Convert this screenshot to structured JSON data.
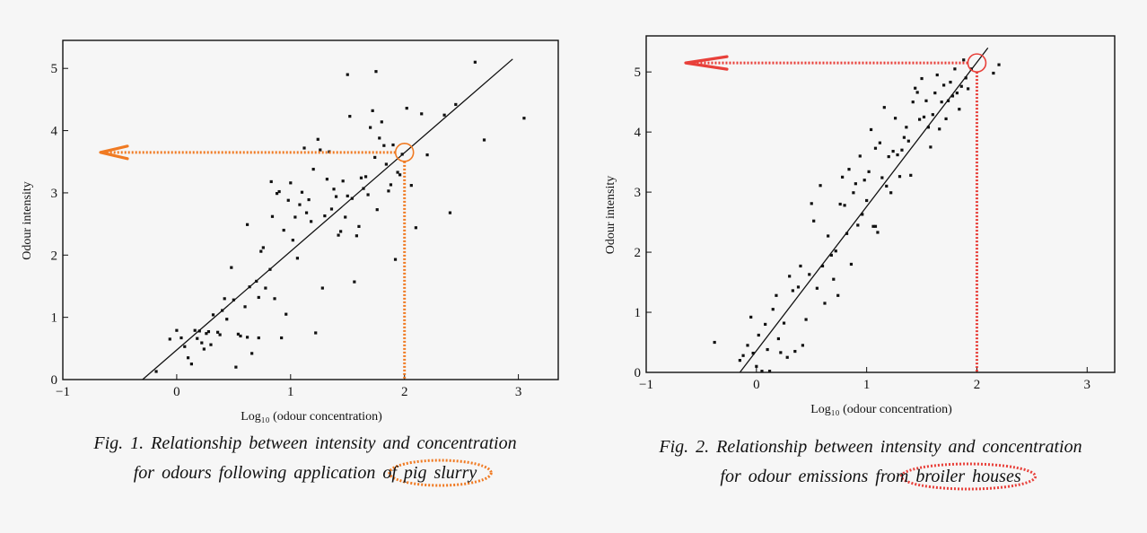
{
  "colors": {
    "fig1_highlight": "#f07a22",
    "fig2_highlight": "#e8403a",
    "ink": "#111111",
    "background": "#f6f6f6"
  },
  "captions": {
    "fig1": {
      "line1": "Fig. 1. Relationship between intensity and concentration",
      "line2_prefix": "for odours following application of",
      "line2_highlight": "pig slurry"
    },
    "fig2": {
      "line1": "Fig. 2. Relationship between intensity and concentration",
      "line2_prefix": "for odour emissions from",
      "line2_highlight": "broiler houses"
    }
  },
  "chart_data": [
    {
      "type": "scatter",
      "xlabel": "Log₁₀ (odour concentration)",
      "ylabel": "Odour intensity",
      "xlim": [
        -1,
        3.35
      ],
      "ylim": [
        0,
        5.45
      ],
      "x_ticks": [
        "−1",
        "0",
        "1",
        "2",
        "3"
      ],
      "y_ticks": [
        "0",
        "1",
        "2",
        "3",
        "4",
        "5"
      ],
      "grid": false,
      "regression_line": {
        "x1": -0.3,
        "y1": 0.0,
        "x2": 2.95,
        "y2": 5.15
      },
      "highlight": {
        "point": [
          2.0,
          3.65
        ],
        "marker": "circle",
        "arrow_to_axis": "y",
        "drop_to_axis": "x"
      },
      "points": [
        [
          -0.18,
          0.13
        ],
        [
          -0.06,
          0.65
        ],
        [
          0.0,
          0.79
        ],
        [
          0.04,
          0.67
        ],
        [
          0.07,
          0.53
        ],
        [
          0.1,
          0.35
        ],
        [
          0.13,
          0.25
        ],
        [
          0.16,
          0.79
        ],
        [
          0.18,
          0.66
        ],
        [
          0.2,
          0.78
        ],
        [
          0.22,
          0.59
        ],
        [
          0.24,
          0.49
        ],
        [
          0.26,
          0.74
        ],
        [
          0.28,
          0.77
        ],
        [
          0.3,
          0.56
        ],
        [
          0.32,
          1.04
        ],
        [
          0.36,
          0.76
        ],
        [
          0.38,
          0.72
        ],
        [
          0.4,
          1.11
        ],
        [
          0.42,
          1.3
        ],
        [
          0.44,
          0.97
        ],
        [
          0.48,
          1.8
        ],
        [
          0.5,
          1.28
        ],
        [
          0.52,
          0.2
        ],
        [
          0.54,
          0.73
        ],
        [
          0.56,
          0.7
        ],
        [
          0.6,
          1.17
        ],
        [
          0.62,
          2.49
        ],
        [
          0.62,
          0.68
        ],
        [
          0.64,
          1.49
        ],
        [
          0.66,
          0.42
        ],
        [
          0.7,
          1.58
        ],
        [
          0.72,
          1.32
        ],
        [
          0.72,
          0.67
        ],
        [
          0.74,
          2.06
        ],
        [
          0.76,
          2.12
        ],
        [
          0.78,
          1.47
        ],
        [
          0.82,
          1.77
        ],
        [
          0.84,
          2.62
        ],
        [
          0.86,
          1.3
        ],
        [
          0.88,
          2.99
        ],
        [
          0.9,
          3.02
        ],
        [
          0.92,
          0.67
        ],
        [
          0.94,
          2.4
        ],
        [
          0.96,
          1.05
        ],
        [
          0.98,
          2.88
        ],
        [
          1.0,
          3.16
        ],
        [
          1.02,
          2.24
        ],
        [
          1.04,
          2.61
        ],
        [
          1.06,
          1.95
        ],
        [
          1.08,
          2.81
        ],
        [
          1.1,
          3.01
        ],
        [
          1.12,
          3.72
        ],
        [
          1.14,
          2.68
        ],
        [
          1.16,
          2.89
        ],
        [
          1.18,
          2.54
        ],
        [
          1.2,
          3.38
        ],
        [
          1.22,
          0.75
        ],
        [
          1.24,
          3.86
        ],
        [
          1.26,
          3.69
        ],
        [
          1.28,
          1.47
        ],
        [
          1.3,
          2.63
        ],
        [
          1.32,
          3.22
        ],
        [
          1.34,
          3.66
        ],
        [
          1.36,
          2.74
        ],
        [
          1.38,
          3.06
        ],
        [
          1.4,
          2.94
        ],
        [
          1.42,
          2.32
        ],
        [
          1.44,
          2.38
        ],
        [
          1.46,
          3.19
        ],
        [
          1.48,
          2.61
        ],
        [
          1.5,
          2.95
        ],
        [
          1.52,
          4.23
        ],
        [
          1.54,
          2.91
        ],
        [
          1.56,
          1.57
        ],
        [
          1.58,
          2.31
        ],
        [
          1.6,
          2.46
        ],
        [
          1.62,
          3.24
        ],
        [
          1.64,
          3.07
        ],
        [
          1.66,
          3.26
        ],
        [
          1.68,
          2.97
        ],
        [
          1.7,
          4.05
        ],
        [
          1.72,
          4.32
        ],
        [
          1.74,
          3.57
        ],
        [
          1.76,
          2.73
        ],
        [
          1.78,
          3.88
        ],
        [
          1.8,
          4.14
        ],
        [
          1.82,
          3.76
        ],
        [
          1.84,
          3.46
        ],
        [
          1.86,
          3.03
        ],
        [
          1.88,
          3.13
        ],
        [
          1.9,
          3.77
        ],
        [
          1.92,
          1.93
        ],
        [
          1.94,
          3.33
        ],
        [
          1.96,
          3.29
        ],
        [
          1.98,
          3.62
        ],
        [
          2.02,
          4.36
        ],
        [
          2.06,
          3.12
        ],
        [
          2.1,
          2.44
        ],
        [
          2.15,
          4.27
        ],
        [
          2.2,
          3.61
        ],
        [
          2.35,
          4.25
        ],
        [
          2.4,
          2.68
        ],
        [
          2.45,
          4.42
        ],
        [
          2.62,
          5.1
        ],
        [
          2.7,
          3.85
        ],
        [
          3.05,
          4.2
        ],
        [
          1.5,
          4.9
        ],
        [
          1.75,
          4.95
        ],
        [
          0.83,
          3.18
        ]
      ]
    },
    {
      "type": "scatter",
      "xlabel": "Log₁₀ (odour concentration)",
      "ylabel": "Odour intensity",
      "xlim": [
        -1,
        3.25
      ],
      "ylim": [
        0,
        5.6
      ],
      "x_ticks": [
        "−1",
        "0",
        "1",
        "2",
        "3"
      ],
      "y_ticks": [
        "0",
        "1",
        "2",
        "3",
        "4",
        "5"
      ],
      "grid": false,
      "regression_line": {
        "x1": -0.15,
        "y1": 0.0,
        "x2": 2.1,
        "y2": 5.4
      },
      "highlight": {
        "point": [
          2.0,
          5.15
        ],
        "marker": "circle",
        "arrow_to_axis": "y",
        "drop_to_axis": "x"
      },
      "points": [
        [
          -0.38,
          0.5
        ],
        [
          -0.15,
          0.2
        ],
        [
          -0.12,
          0.28
        ],
        [
          -0.08,
          0.45
        ],
        [
          -0.05,
          0.92
        ],
        [
          -0.03,
          0.32
        ],
        [
          0.0,
          0.1
        ],
        [
          0.02,
          0.62
        ],
        [
          0.05,
          0.02
        ],
        [
          0.08,
          0.8
        ],
        [
          0.1,
          0.38
        ],
        [
          0.12,
          0.02
        ],
        [
          0.15,
          1.05
        ],
        [
          0.18,
          1.28
        ],
        [
          0.2,
          0.56
        ],
        [
          0.22,
          0.33
        ],
        [
          0.25,
          0.82
        ],
        [
          0.28,
          0.25
        ],
        [
          0.3,
          1.6
        ],
        [
          0.33,
          1.36
        ],
        [
          0.35,
          0.35
        ],
        [
          0.38,
          1.42
        ],
        [
          0.4,
          1.77
        ],
        [
          0.42,
          0.45
        ],
        [
          0.45,
          0.88
        ],
        [
          0.48,
          1.63
        ],
        [
          0.5,
          2.81
        ],
        [
          0.52,
          2.52
        ],
        [
          0.55,
          1.4
        ],
        [
          0.58,
          3.11
        ],
        [
          0.6,
          1.77
        ],
        [
          0.62,
          1.15
        ],
        [
          0.65,
          2.27
        ],
        [
          0.68,
          1.95
        ],
        [
          0.7,
          1.55
        ],
        [
          0.72,
          2.02
        ],
        [
          0.74,
          1.28
        ],
        [
          0.76,
          2.8
        ],
        [
          0.78,
          3.25
        ],
        [
          0.8,
          2.78
        ],
        [
          0.82,
          2.31
        ],
        [
          0.84,
          3.38
        ],
        [
          0.86,
          1.8
        ],
        [
          0.88,
          2.99
        ],
        [
          0.9,
          3.14
        ],
        [
          0.92,
          2.45
        ],
        [
          0.94,
          3.6
        ],
        [
          0.96,
          2.63
        ],
        [
          0.98,
          3.2
        ],
        [
          1.0,
          2.86
        ],
        [
          1.02,
          3.34
        ],
        [
          1.04,
          4.04
        ],
        [
          1.06,
          2.43
        ],
        [
          1.08,
          3.73
        ],
        [
          1.1,
          2.33
        ],
        [
          1.12,
          3.82
        ],
        [
          1.14,
          3.24
        ],
        [
          1.16,
          4.41
        ],
        [
          1.18,
          3.1
        ],
        [
          1.2,
          3.59
        ],
        [
          1.22,
          2.99
        ],
        [
          1.24,
          3.68
        ],
        [
          1.26,
          4.23
        ],
        [
          1.28,
          3.62
        ],
        [
          1.3,
          3.26
        ],
        [
          1.32,
          3.7
        ],
        [
          1.34,
          3.91
        ],
        [
          1.36,
          4.08
        ],
        [
          1.38,
          3.85
        ],
        [
          1.4,
          3.28
        ],
        [
          1.42,
          4.5
        ],
        [
          1.44,
          4.73
        ],
        [
          1.46,
          4.66
        ],
        [
          1.48,
          4.21
        ],
        [
          1.5,
          4.89
        ],
        [
          1.52,
          4.25
        ],
        [
          1.54,
          4.52
        ],
        [
          1.56,
          4.08
        ],
        [
          1.58,
          3.75
        ],
        [
          1.6,
          4.29
        ],
        [
          1.62,
          4.65
        ],
        [
          1.64,
          4.95
        ],
        [
          1.66,
          4.05
        ],
        [
          1.68,
          4.5
        ],
        [
          1.7,
          4.78
        ],
        [
          1.72,
          4.22
        ],
        [
          1.74,
          4.52
        ],
        [
          1.76,
          4.83
        ],
        [
          1.78,
          4.6
        ],
        [
          1.8,
          5.05
        ],
        [
          1.82,
          4.65
        ],
        [
          1.84,
          4.38
        ],
        [
          1.86,
          4.76
        ],
        [
          1.88,
          5.2
        ],
        [
          1.9,
          4.9
        ],
        [
          1.92,
          4.72
        ],
        [
          1.95,
          5.05
        ],
        [
          2.15,
          4.98
        ],
        [
          2.2,
          5.12
        ],
        [
          1.08,
          2.43
        ]
      ]
    }
  ]
}
